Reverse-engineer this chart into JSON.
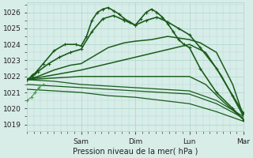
{
  "background_color": "#cce8e0",
  "plot_bg": "#d8ede8",
  "grid_color": "#b0d8d0",
  "line_color_dark": "#1a5c1a",
  "line_color_light": "#4a9a4a",
  "title": "Pression niveau de la mer( hPa )",
  "ylim": [
    1018.6,
    1026.6
  ],
  "yticks": [
    1019,
    1020,
    1021,
    1022,
    1023,
    1024,
    1025,
    1026
  ],
  "xlim": [
    0,
    4.0
  ],
  "day_labels": [
    "Sam",
    "Dim",
    "Lun",
    "Mar"
  ],
  "day_positions": [
    1,
    2,
    3,
    4
  ],
  "series": [
    {
      "x": [
        0.0,
        0.05,
        0.1,
        0.15,
        0.2,
        0.3,
        0.5,
        0.7,
        0.9,
        1.0,
        1.1,
        1.2,
        1.3,
        1.4,
        1.5,
        1.6,
        1.7,
        1.8,
        1.9,
        2.0,
        2.1,
        2.2,
        2.3,
        2.4,
        2.5,
        2.6,
        2.7,
        2.8,
        2.9,
        3.0,
        3.2,
        3.5,
        3.8,
        4.0
      ],
      "y": [
        1021.8,
        1021.9,
        1022.1,
        1022.2,
        1022.4,
        1022.8,
        1023.6,
        1024.0,
        1024.0,
        1023.9,
        1024.5,
        1025.5,
        1026.0,
        1026.2,
        1026.3,
        1026.1,
        1025.9,
        1025.6,
        1025.4,
        1025.2,
        1025.6,
        1026.0,
        1026.2,
        1026.0,
        1025.7,
        1025.3,
        1024.8,
        1024.3,
        1024.0,
        1023.8,
        1022.5,
        1021.0,
        1020.0,
        1019.3
      ],
      "color": "dark",
      "lw": 1.2,
      "marker": "+"
    },
    {
      "x": [
        0.0,
        0.1,
        0.2,
        0.4,
        0.6,
        0.8,
        1.0,
        1.2,
        1.4,
        1.6,
        1.8,
        2.0,
        2.2,
        2.4,
        2.6,
        2.8,
        3.0,
        3.2,
        3.5,
        3.8,
        4.0
      ],
      "y": [
        1021.8,
        1022.0,
        1022.3,
        1022.8,
        1023.2,
        1023.5,
        1023.7,
        1024.8,
        1025.6,
        1025.8,
        1025.5,
        1025.2,
        1025.5,
        1025.7,
        1025.4,
        1025.0,
        1024.6,
        1023.8,
        1022.5,
        1020.8,
        1019.7
      ],
      "color": "dark",
      "lw": 1.2,
      "marker": "+"
    },
    {
      "x": [
        0.0,
        0.2,
        0.5,
        0.8,
        1.0,
        1.2,
        1.5,
        1.8,
        2.0,
        2.3,
        2.6,
        3.0,
        3.2,
        3.5,
        3.8,
        4.0
      ],
      "y": [
        1021.8,
        1022.0,
        1022.4,
        1022.7,
        1022.8,
        1023.2,
        1023.8,
        1024.1,
        1024.2,
        1024.3,
        1024.5,
        1024.3,
        1024.1,
        1023.5,
        1021.5,
        1019.5
      ],
      "color": "dark",
      "lw": 1.1,
      "marker": null
    },
    {
      "x": [
        0.0,
        0.5,
        1.0,
        1.5,
        2.0,
        2.5,
        3.0,
        3.3,
        3.6,
        4.0
      ],
      "y": [
        1021.8,
        1022.1,
        1022.4,
        1022.8,
        1023.2,
        1023.6,
        1024.0,
        1023.5,
        1022.0,
        1019.5
      ],
      "color": "dark",
      "lw": 1.1,
      "marker": null
    },
    {
      "x": [
        0.0,
        0.5,
        1.0,
        1.5,
        2.0,
        2.5,
        3.0,
        3.3,
        3.6,
        4.0
      ],
      "y": [
        1021.8,
        1021.9,
        1022.0,
        1022.0,
        1022.0,
        1022.0,
        1022.0,
        1021.5,
        1020.5,
        1019.3
      ],
      "color": "dark",
      "lw": 1.0,
      "marker": null
    },
    {
      "x": [
        0.0,
        0.5,
        1.0,
        1.5,
        2.0,
        2.5,
        3.0,
        3.5,
        4.0
      ],
      "y": [
        1021.8,
        1021.7,
        1021.5,
        1021.4,
        1021.3,
        1021.2,
        1021.1,
        1020.5,
        1019.5
      ],
      "color": "dark",
      "lw": 0.9,
      "marker": null
    },
    {
      "x": [
        0.0,
        0.5,
        1.0,
        1.5,
        2.0,
        2.5,
        3.0,
        3.5,
        4.0
      ],
      "y": [
        1021.5,
        1021.4,
        1021.3,
        1021.2,
        1021.1,
        1021.0,
        1020.9,
        1020.3,
        1019.4
      ],
      "color": "dark",
      "lw": 0.9,
      "marker": null
    },
    {
      "x": [
        0.0,
        0.5,
        1.0,
        1.5,
        2.0,
        2.5,
        3.0,
        3.5,
        4.0
      ],
      "y": [
        1021.2,
        1021.1,
        1021.0,
        1020.8,
        1020.7,
        1020.5,
        1020.3,
        1019.8,
        1019.2
      ],
      "color": "dark",
      "lw": 0.9,
      "marker": null
    },
    {
      "x": [
        0.0,
        0.08,
        0.15,
        0.22,
        0.3
      ],
      "y": [
        1020.5,
        1020.7,
        1021.0,
        1021.3,
        1021.5
      ],
      "color": "light",
      "lw": 0.8,
      "marker": "+"
    }
  ]
}
